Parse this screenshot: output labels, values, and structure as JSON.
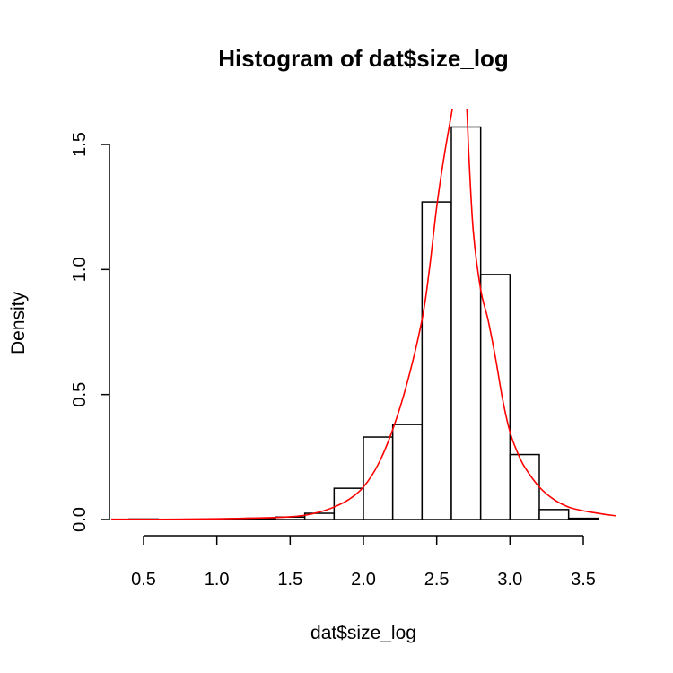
{
  "chart_data": {
    "type": "bar",
    "title": "Histogram of dat$size_log",
    "xlabel": "dat$size_log",
    "ylabel": "Density",
    "xlim": [
      0.28,
      3.72
    ],
    "ylim": [
      0,
      1.64
    ],
    "x_ticks": [
      0.5,
      1.0,
      1.5,
      2.0,
      2.5,
      3.0,
      3.5
    ],
    "x_tick_labels": [
      "0.5",
      "1.0",
      "1.5",
      "2.0",
      "2.5",
      "3.0",
      "3.5"
    ],
    "y_ticks": [
      0.0,
      0.5,
      1.0,
      1.5
    ],
    "y_tick_labels": [
      "0.0",
      "0.5",
      "1.0",
      "1.5"
    ],
    "grid": false,
    "histogram": {
      "bin_edges": [
        0.4,
        0.6,
        0.8,
        1.0,
        1.2,
        1.4,
        1.6,
        1.8,
        2.0,
        2.2,
        2.4,
        2.6,
        2.8,
        3.0,
        3.2,
        3.4,
        3.6
      ],
      "density": [
        0.002,
        0.0,
        0.0,
        0.002,
        0.005,
        0.01,
        0.025,
        0.125,
        0.33,
        0.38,
        1.27,
        1.57,
        0.98,
        0.26,
        0.04,
        0.005
      ]
    },
    "density_curve": {
      "color": "#ff0000",
      "x": [
        0.28,
        0.5,
        0.7,
        1.0,
        1.2,
        1.4,
        1.5,
        1.6,
        1.7,
        1.8,
        1.9,
        2.0,
        2.1,
        2.2,
        2.3,
        2.4,
        2.45,
        2.5,
        2.55,
        2.6,
        2.63,
        2.67,
        2.7,
        2.72,
        2.75,
        2.8,
        2.85,
        2.9,
        2.95,
        3.0,
        3.05,
        3.1,
        3.2,
        3.3,
        3.4,
        3.5,
        3.6,
        3.72
      ],
      "y": [
        0.001,
        0.001,
        0.001,
        0.003,
        0.005,
        0.008,
        0.011,
        0.017,
        0.03,
        0.05,
        0.08,
        0.13,
        0.22,
        0.36,
        0.55,
        0.8,
        1.0,
        1.25,
        1.45,
        1.62,
        1.72,
        1.78,
        1.7,
        1.45,
        1.15,
        0.92,
        0.8,
        0.65,
        0.48,
        0.35,
        0.27,
        0.21,
        0.13,
        0.08,
        0.05,
        0.035,
        0.025,
        0.015
      ]
    }
  }
}
